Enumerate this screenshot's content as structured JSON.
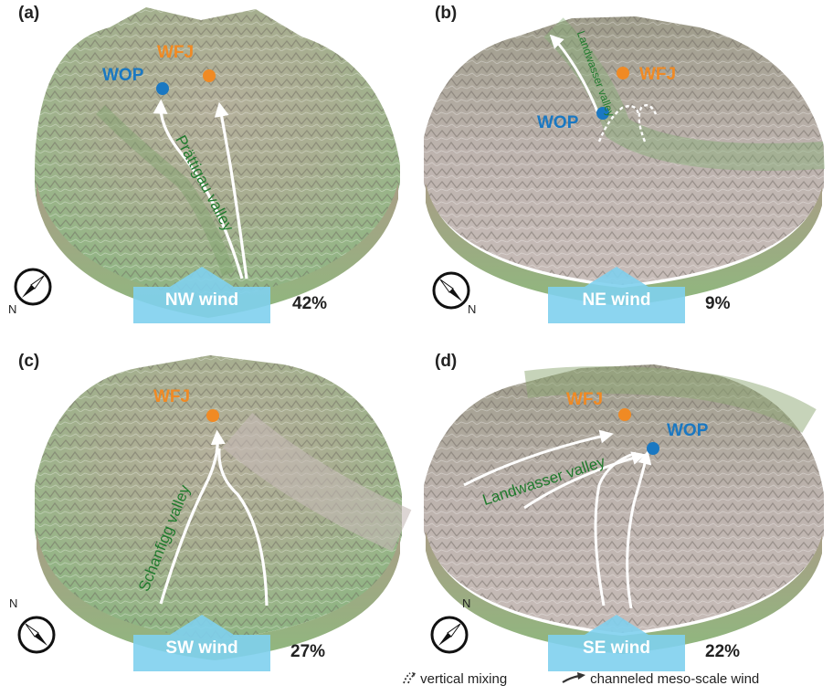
{
  "panels": [
    {
      "label": "(a)",
      "wind": "NW wind",
      "percent": "42%",
      "station_wfj": "WFJ",
      "station_wop": "WOP",
      "valley": "Prättigau valley",
      "north": "N"
    },
    {
      "label": "(b)",
      "wind": "NE wind",
      "percent": "9%",
      "station_wfj": "WFJ",
      "station_wop": "WOP",
      "valley": "Landwasser valley",
      "north": "N"
    },
    {
      "label": "(c)",
      "wind": "SW wind",
      "percent": "27%",
      "station_wfj": "WFJ",
      "valley": "Schanfigg valley",
      "north": "N"
    },
    {
      "label": "(d)",
      "wind": "SE wind",
      "percent": "22%",
      "station_wfj": "WFJ",
      "station_wop": "WOP",
      "valley": "Landwasser valley",
      "north": "N"
    }
  ],
  "legend": {
    "vertical_mixing": "vertical mixing",
    "channeled_wind": "channeled meso-scale wind"
  },
  "colors": {
    "wfj": "#f08a24",
    "wop": "#1a78c2",
    "wind_arrow": "#7fd0ee",
    "valley_text": "#1f7a2c",
    "terrain_low": "#9fbf8a",
    "terrain_high": "#b8aaa6"
  }
}
